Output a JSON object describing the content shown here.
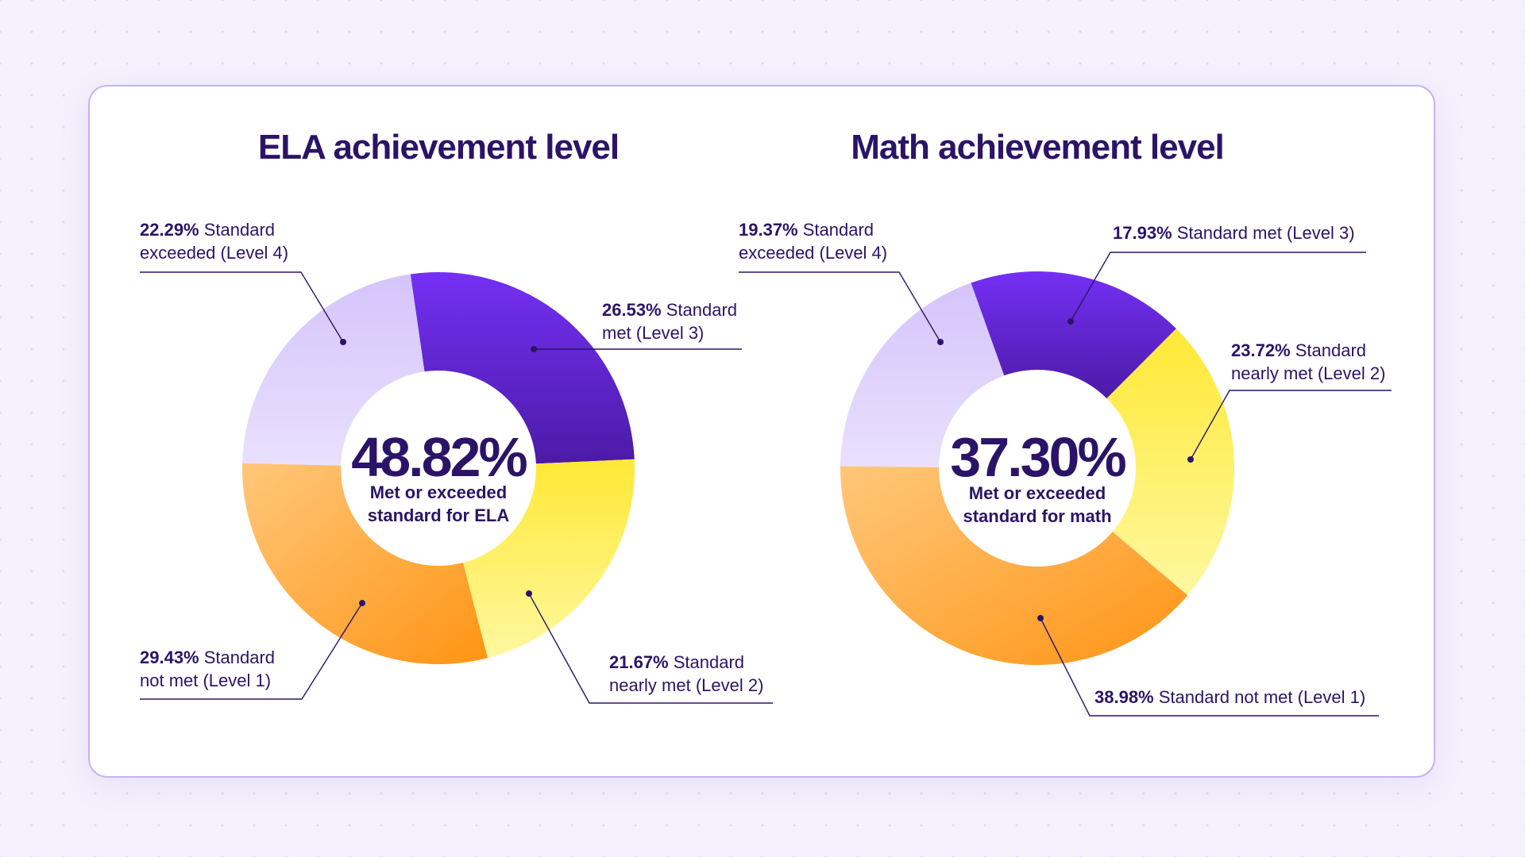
{
  "chart_data": [
    {
      "type": "pie",
      "title": "ELA achievement level",
      "center_value": "48.82%",
      "center_caption": [
        "Met or exceeded",
        "standard for ELA"
      ],
      "slices": [
        {
          "percent_label": "26.53%",
          "label_lines": [
            "Standard",
            "met (Level 3)"
          ],
          "value": 26.53,
          "color": "#6a2ee6"
        },
        {
          "percent_label": "21.67%",
          "label_lines": [
            "Standard",
            "nearly met (Level 2)"
          ],
          "value": 21.67,
          "color": "#ffef4a"
        },
        {
          "percent_label": "29.43%",
          "label_lines": [
            "Standard",
            "not met (Level 1)"
          ],
          "value": 29.43,
          "color": "#ffa030"
        },
        {
          "percent_label": "22.29%",
          "label_lines": [
            "Standard",
            "exceeded (Level 4)"
          ],
          "value": 22.29,
          "color": "#d9cafb"
        }
      ]
    },
    {
      "type": "pie",
      "title": "Math achievement level",
      "center_value": "37.30%",
      "center_caption": [
        "Met or exceeded",
        "standard for math"
      ],
      "slices": [
        {
          "percent_label": "17.93%",
          "label_lines": [
            "Standard met (Level 3)"
          ],
          "value": 17.93,
          "color": "#6a2ee6"
        },
        {
          "percent_label": "23.72%",
          "label_lines": [
            "Standard",
            "nearly met (Level 2)"
          ],
          "value": 23.72,
          "color": "#ffef4a"
        },
        {
          "percent_label": "38.98%",
          "label_lines": [
            "Standard not met (Level 1)"
          ],
          "value": 38.98,
          "color": "#ffa030"
        },
        {
          "percent_label": "19.37%",
          "label_lines": [
            "Standard",
            "exceeded (Level 4)"
          ],
          "value": 19.37,
          "color": "#d9cafb"
        }
      ]
    }
  ]
}
